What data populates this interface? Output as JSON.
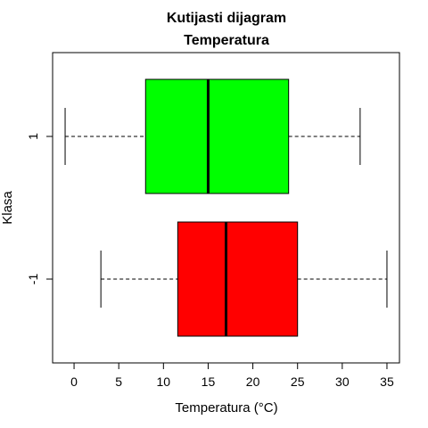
{
  "chart_data": {
    "type": "boxplot",
    "orientation": "horizontal",
    "title_line1": "Kutijasti dijagram",
    "title_line2": "Temperatura",
    "xlabel": "Temperatura (°C)",
    "ylabel": "Klasa",
    "xlim": [
      -2.4,
      36.4
    ],
    "xticks": [
      0,
      5,
      10,
      15,
      20,
      25,
      30,
      35
    ],
    "grid": false,
    "series": [
      {
        "name": "1",
        "min": -1,
        "q1": 8,
        "median": 15,
        "q3": 24,
        "max": 32,
        "color": "#00ff00"
      },
      {
        "name": "-1",
        "min": 3,
        "q1": 11.6,
        "median": 17,
        "q3": 25,
        "max": 35,
        "color": "#ff0000"
      }
    ]
  }
}
